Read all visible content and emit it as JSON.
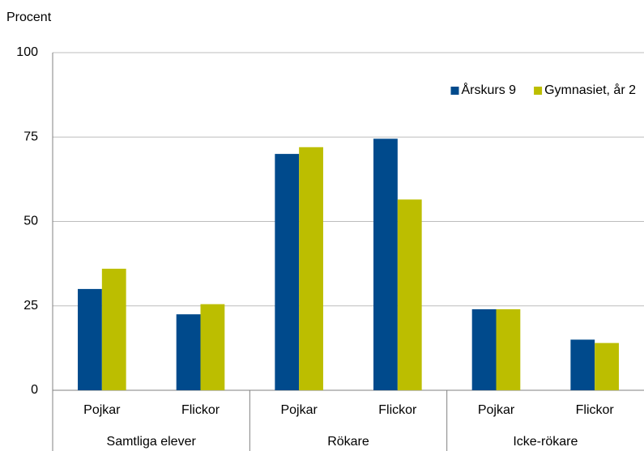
{
  "chart_data": {
    "type": "bar",
    "ylabel": "Procent",
    "categories": [
      "Pojkar",
      "Flickor",
      "Pojkar",
      "Flickor",
      "Pojkar",
      "Flickor"
    ],
    "groups": [
      "Samtliga elever",
      "Rökare",
      "Icke-rökare"
    ],
    "series": [
      {
        "name": "Årskurs 9",
        "color": "#004a8c",
        "values": [
          30,
          22.5,
          70,
          74.5,
          24,
          15
        ]
      },
      {
        "name": "Gymnasiet, år 2",
        "color": "#bcbe00",
        "values": [
          36,
          25.5,
          72,
          56.5,
          24,
          14
        ]
      }
    ],
    "ylim": [
      0,
      100
    ],
    "yticks": [
      0,
      25,
      50,
      75,
      100
    ],
    "grid": true,
    "legend": "upper right"
  }
}
